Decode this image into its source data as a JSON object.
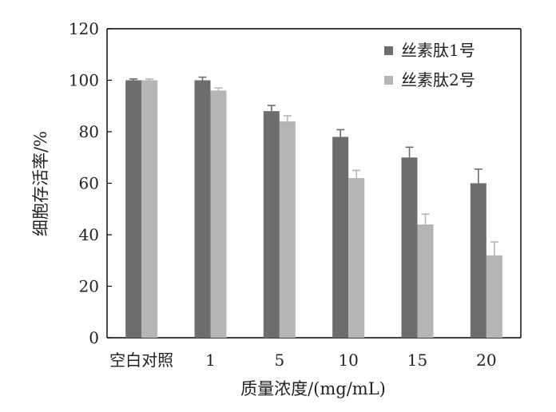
{
  "chart_data": {
    "type": "bar",
    "xlabel": "质量浓度/(mg/mL)",
    "ylabel": "细胞存活率/%",
    "categories": [
      "空白对照",
      "1",
      "5",
      "10",
      "15",
      "20"
    ],
    "ylim": [
      0,
      120
    ],
    "yticks": [
      0,
      20,
      40,
      60,
      80,
      100,
      120
    ],
    "grid": false,
    "legend_position": "top-right",
    "series": [
      {
        "name": "丝素肽1号",
        "color": "#6d6d6d",
        "values": [
          100,
          100,
          88,
          78,
          70,
          60
        ],
        "errors": [
          0.5,
          1.2,
          2.2,
          2.8,
          4.0,
          5.5
        ]
      },
      {
        "name": "丝素肽2号",
        "color": "#b5b5b5",
        "values": [
          100,
          96,
          84,
          62,
          44,
          32
        ],
        "errors": [
          0.5,
          1.0,
          2.2,
          3.0,
          4.0,
          5.2
        ]
      }
    ]
  }
}
